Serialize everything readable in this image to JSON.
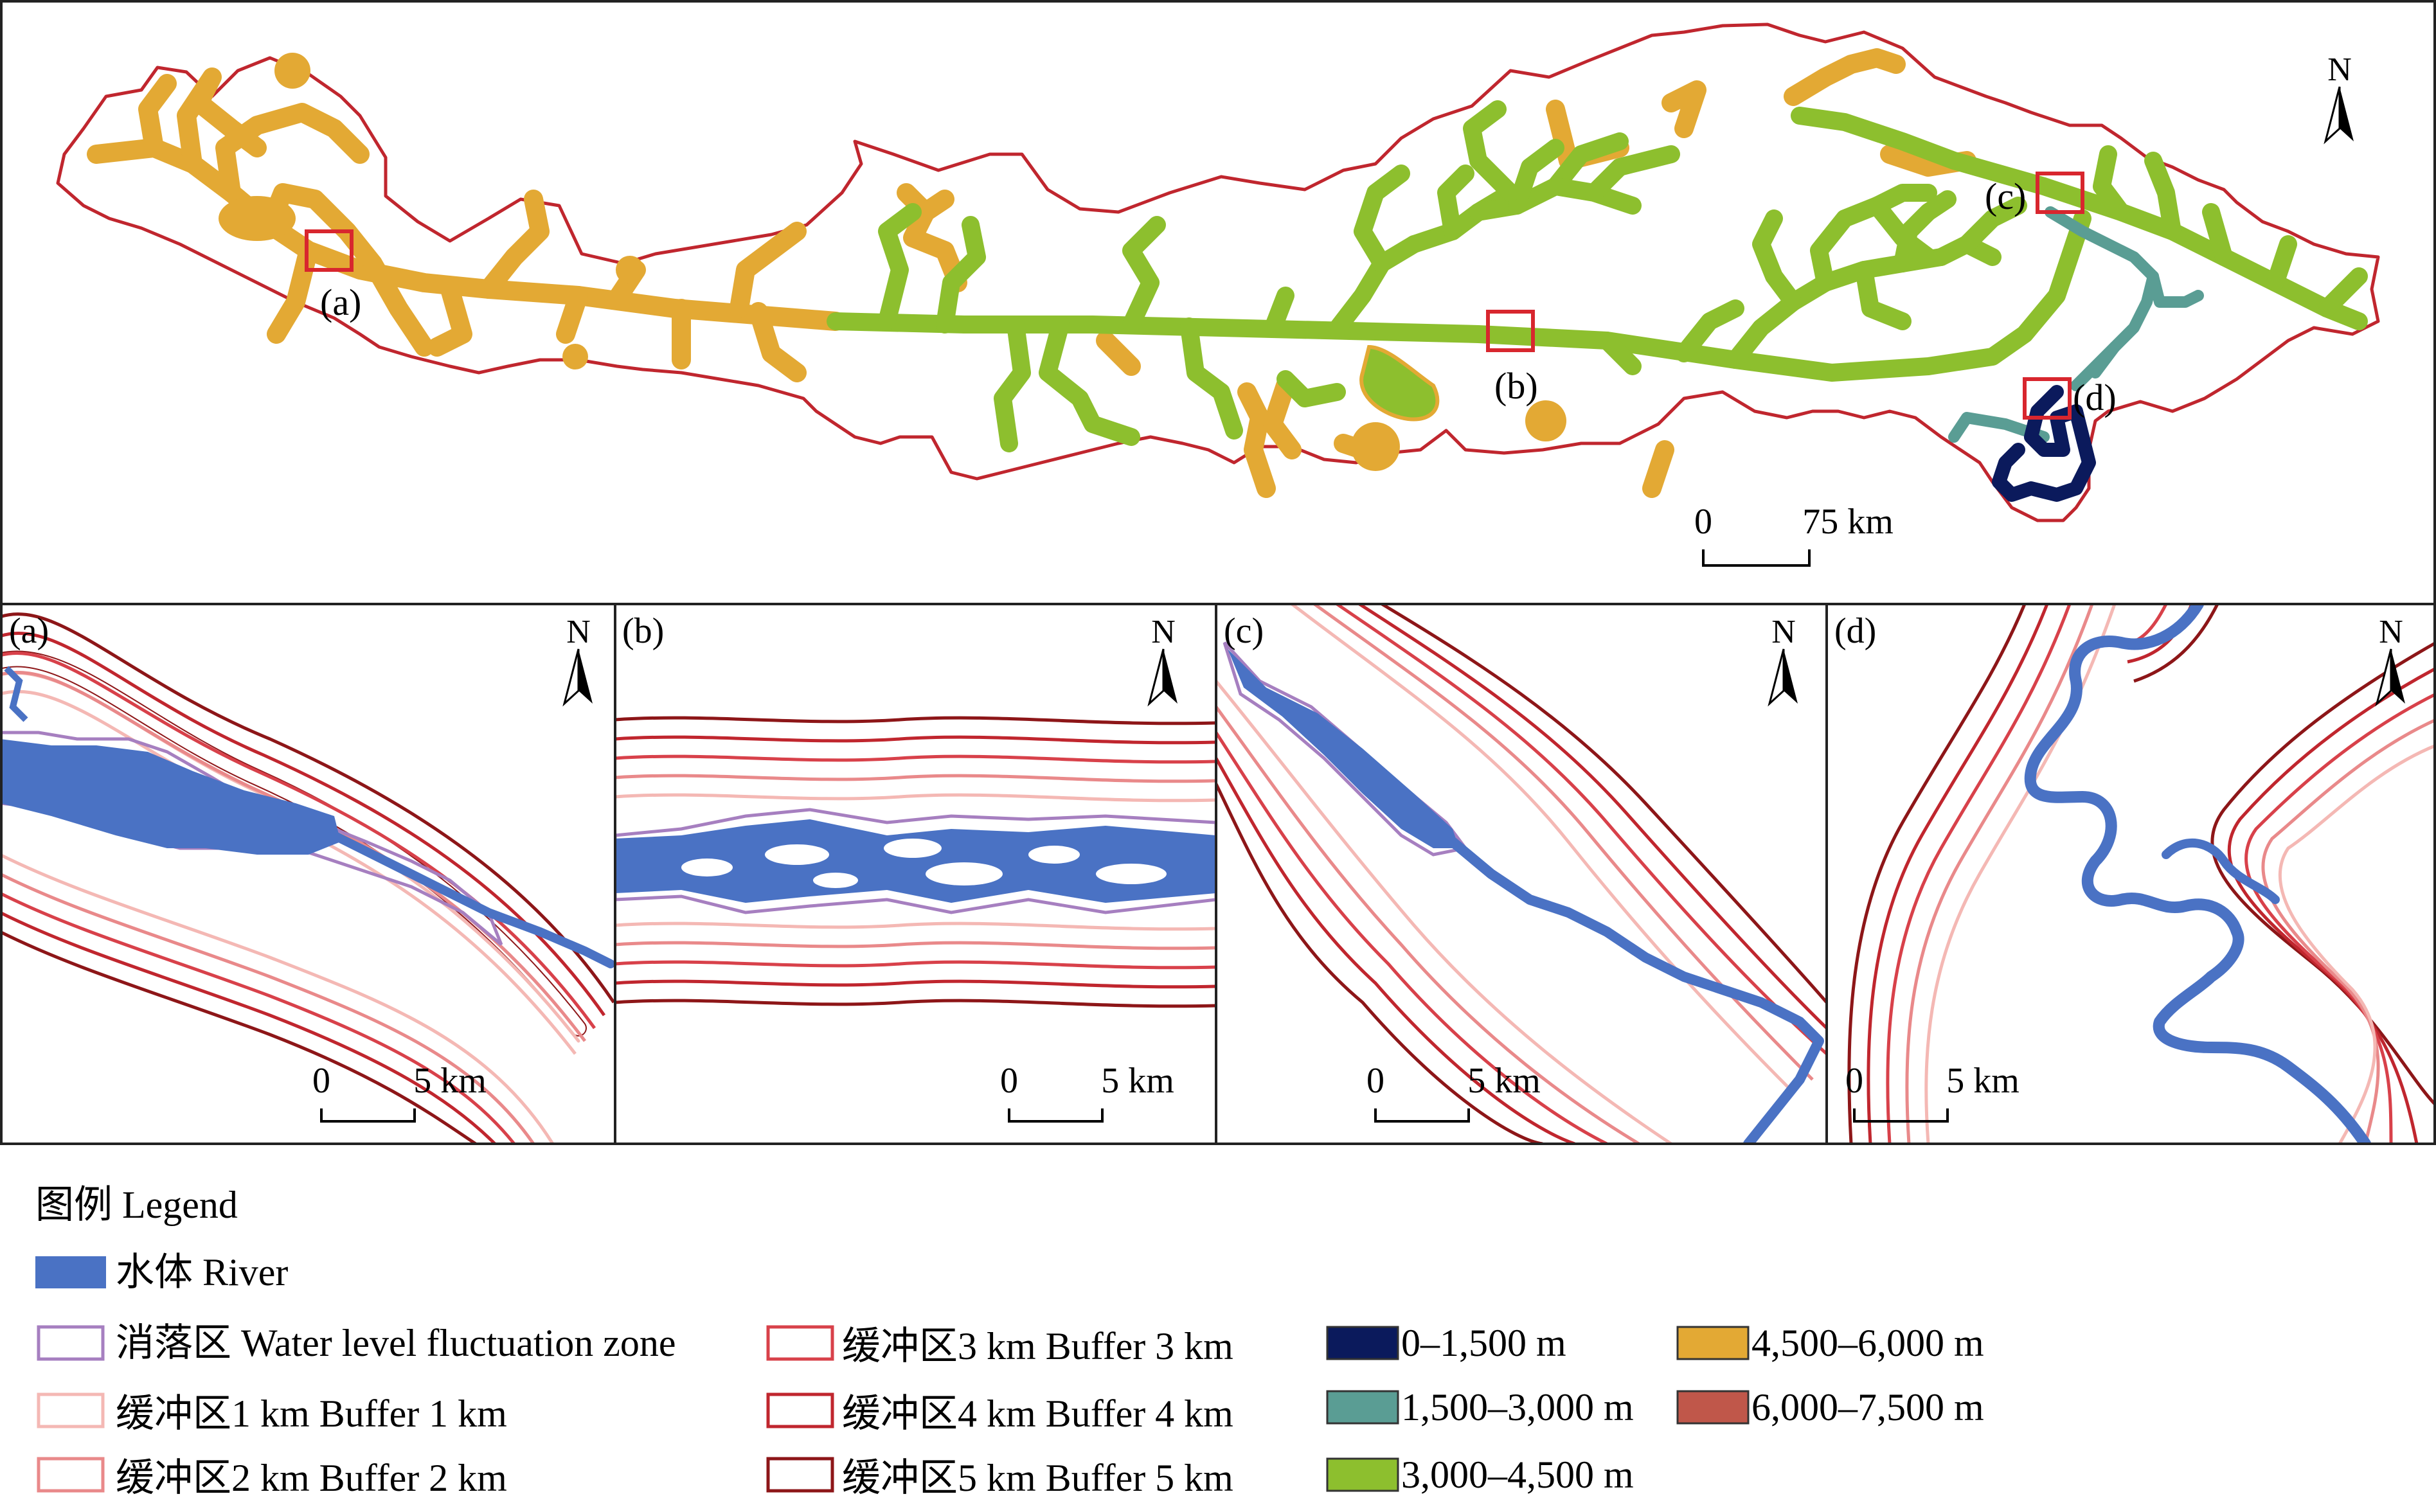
{
  "overview": {
    "north_label": "N",
    "scale_start": "0",
    "scale_end": "75 km",
    "insets_labels": [
      "(a)",
      "(b)",
      "(c)",
      "(d)"
    ]
  },
  "panels": [
    {
      "id": "a",
      "label": "(a)",
      "north_label": "N",
      "scale_start": "0",
      "scale_end": "5 km"
    },
    {
      "id": "b",
      "label": "(b)",
      "north_label": "N",
      "scale_start": "0",
      "scale_end": "5 km"
    },
    {
      "id": "c",
      "label": "(c)",
      "north_label": "N",
      "scale_start": "0",
      "scale_end": "5 km"
    },
    {
      "id": "d",
      "label": "(d)",
      "north_label": "N",
      "scale_start": "0",
      "scale_end": "5 km"
    }
  ],
  "legend": {
    "title": "图例 Legend",
    "river": {
      "label": "水体 River",
      "color": "#4a72c4"
    },
    "fluctuation": {
      "label": "消落区 Water level fluctuation zone",
      "color": "#a67fc0"
    },
    "buffers": [
      {
        "label": "缓冲区1 km Buffer 1 km",
        "color": "#f4b8b4"
      },
      {
        "label": "缓冲区2 km Buffer 2 km",
        "color": "#e9898a"
      },
      {
        "label": "缓冲区3 km Buffer 3 km",
        "color": "#d8414a"
      },
      {
        "label": "缓冲区4 km Buffer 4 km",
        "color": "#c0262e"
      },
      {
        "label": "缓冲区5 km Buffer 5 km",
        "color": "#8d1618"
      }
    ],
    "elevation": [
      {
        "label": "0–1,500 m",
        "color": "#0b1a5c"
      },
      {
        "label": "1,500–3,000 m",
        "color": "#5a9d94"
      },
      {
        "label": "3,000–4,500 m",
        "color": "#8dbf2e"
      },
      {
        "label": "4,500–6,000 m",
        "color": "#e3a934"
      },
      {
        "label": "6,000–7,500 m",
        "color": "#c0574a"
      }
    ]
  }
}
